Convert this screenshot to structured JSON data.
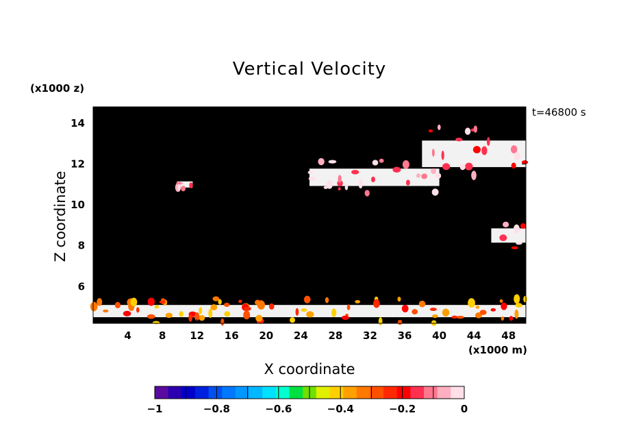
{
  "chart_data": {
    "type": "heatmap",
    "title": "Vertical Velocity",
    "xlabel": "X coordinate",
    "ylabel": "Z coordinate",
    "x_unit": "(x1000 m)",
    "y_unit": "(x1000 z)",
    "time_label": "t=46800 s",
    "xlim": [
      0,
      50
    ],
    "ylim": [
      4.2,
      14.8
    ],
    "x_ticks": [
      4,
      8,
      12,
      16,
      20,
      24,
      28,
      32,
      36,
      40,
      44,
      48
    ],
    "y_ticks": [
      6,
      8,
      10,
      12,
      14
    ],
    "background_color": "#000000",
    "colorbar": {
      "min": -1,
      "max": 0,
      "tick_values": [
        -1,
        -0.8,
        -0.6,
        -0.4,
        -0.2,
        0
      ],
      "tick_labels": [
        "−1",
        "−0.8",
        "−0.6",
        "−0.4",
        "−0.2",
        "0"
      ],
      "colors": [
        "#5a0aa0",
        "#2a00b0",
        "#0000c8",
        "#0020e0",
        "#0050f0",
        "#0078ff",
        "#0098ff",
        "#00b8ff",
        "#00e0ff",
        "#00ffd0",
        "#00e040",
        "#70e000",
        "#e0f000",
        "#ffd000",
        "#ffa000",
        "#ff7800",
        "#ff5000",
        "#ff2800",
        "#ff0000",
        "#ff3050",
        "#ff7890",
        "#ffb0c0",
        "#ffe0e8"
      ]
    },
    "features": [
      {
        "x": [
          25,
          40
        ],
        "z": [
          10.5,
          12.2
        ],
        "value": -0.05
      },
      {
        "x": [
          38,
          50
        ],
        "z": [
          11.2,
          13.8
        ],
        "value": -0.1
      },
      {
        "x": [
          9.7,
          11.5
        ],
        "z": [
          10.7,
          11.3
        ],
        "value": -0.05
      },
      {
        "x": [
          0,
          50
        ],
        "z": [
          4.2,
          5.4
        ],
        "value": -0.3
      },
      {
        "x": [
          46,
          50
        ],
        "z": [
          7.8,
          9.2
        ],
        "value": -0.1
      }
    ]
  }
}
